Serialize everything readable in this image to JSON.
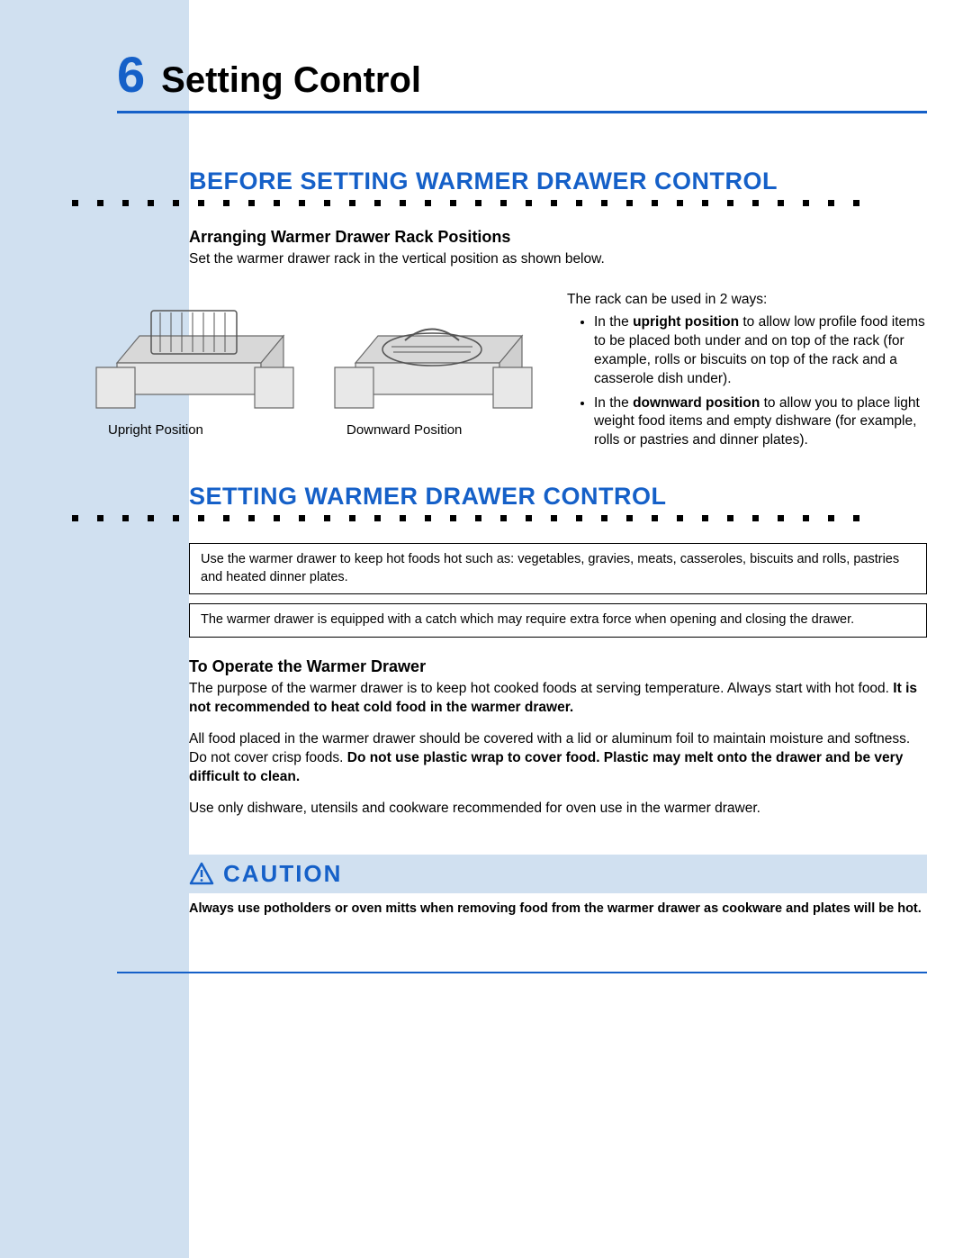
{
  "colors": {
    "accent": "#1560c8",
    "sidebar_bg": "#d0e0f0",
    "banner_bg": "#d0e0f0",
    "text": "#000000",
    "drawer_fill": "#d8d8d8",
    "drawer_stroke": "#6a6a6a",
    "dot_fill": "#000000"
  },
  "typography": {
    "chapter_number_pt": 56,
    "chapter_title_pt": 40,
    "section_heading_pt": 27,
    "subheading_pt": 18,
    "body_pt": 15.5,
    "caption_pt": 15,
    "caution_pt": 26
  },
  "chapter": {
    "number": "6",
    "title": "Setting Control"
  },
  "section1": {
    "heading": "BEFORE SETTING WARMER DRAWER CONTROL",
    "subheading": "Arranging Warmer Drawer Rack Positions",
    "intro": "Set the warmer drawer rack in the vertical position as shown below.",
    "caption_left": "Upright Position",
    "caption_right": "Downward Position",
    "rack_intro": "The rack can be used in 2 ways:",
    "bullet1_lead": "In the ",
    "bullet1_bold": "upright position",
    "bullet1_rest": " to allow low profile food items to be placed both under and on top of the rack (for example, rolls or biscuits on top of the rack and a casserole dish under).",
    "bullet2_lead": "In the ",
    "bullet2_bold": "downward position",
    "bullet2_rest": " to allow you to place light weight food items and empty dishware (for example, rolls or pastries and dinner plates)."
  },
  "section2": {
    "heading": "SETTING WARMER DRAWER CONTROL",
    "box1": "Use the warmer drawer to keep hot foods hot such as: vegetables, gravies, meats, casseroles, biscuits and rolls, pastries and heated dinner plates.",
    "box2": "The warmer drawer is equipped with a catch which may require extra force when opening and closing the drawer.",
    "subheading": "To Operate the Warmer Drawer",
    "para1_lead": "The purpose of the warmer drawer is to keep hot cooked foods at serving temperature. Always start with hot food. ",
    "para1_bold": "It is not recommended to heat cold food in the warmer drawer.",
    "para2_lead": "All food placed in the warmer drawer should be covered with a lid or aluminum foil to maintain moisture and softness. Do not cover crisp foods. ",
    "para2_bold": "Do not use plastic wrap to cover food. Plastic may melt onto the drawer and be very difficult to clean.",
    "para3": "Use only dishware, utensils and cookware recommended for oven use in the warmer drawer."
  },
  "caution": {
    "label": "CAUTION",
    "body": "Always use potholders or oven mitts when removing food from the warmer drawer as cookware and plates will be hot."
  },
  "dotted_divider": {
    "dot_count": 32,
    "dot_size": 7,
    "dot_gap": 28
  }
}
